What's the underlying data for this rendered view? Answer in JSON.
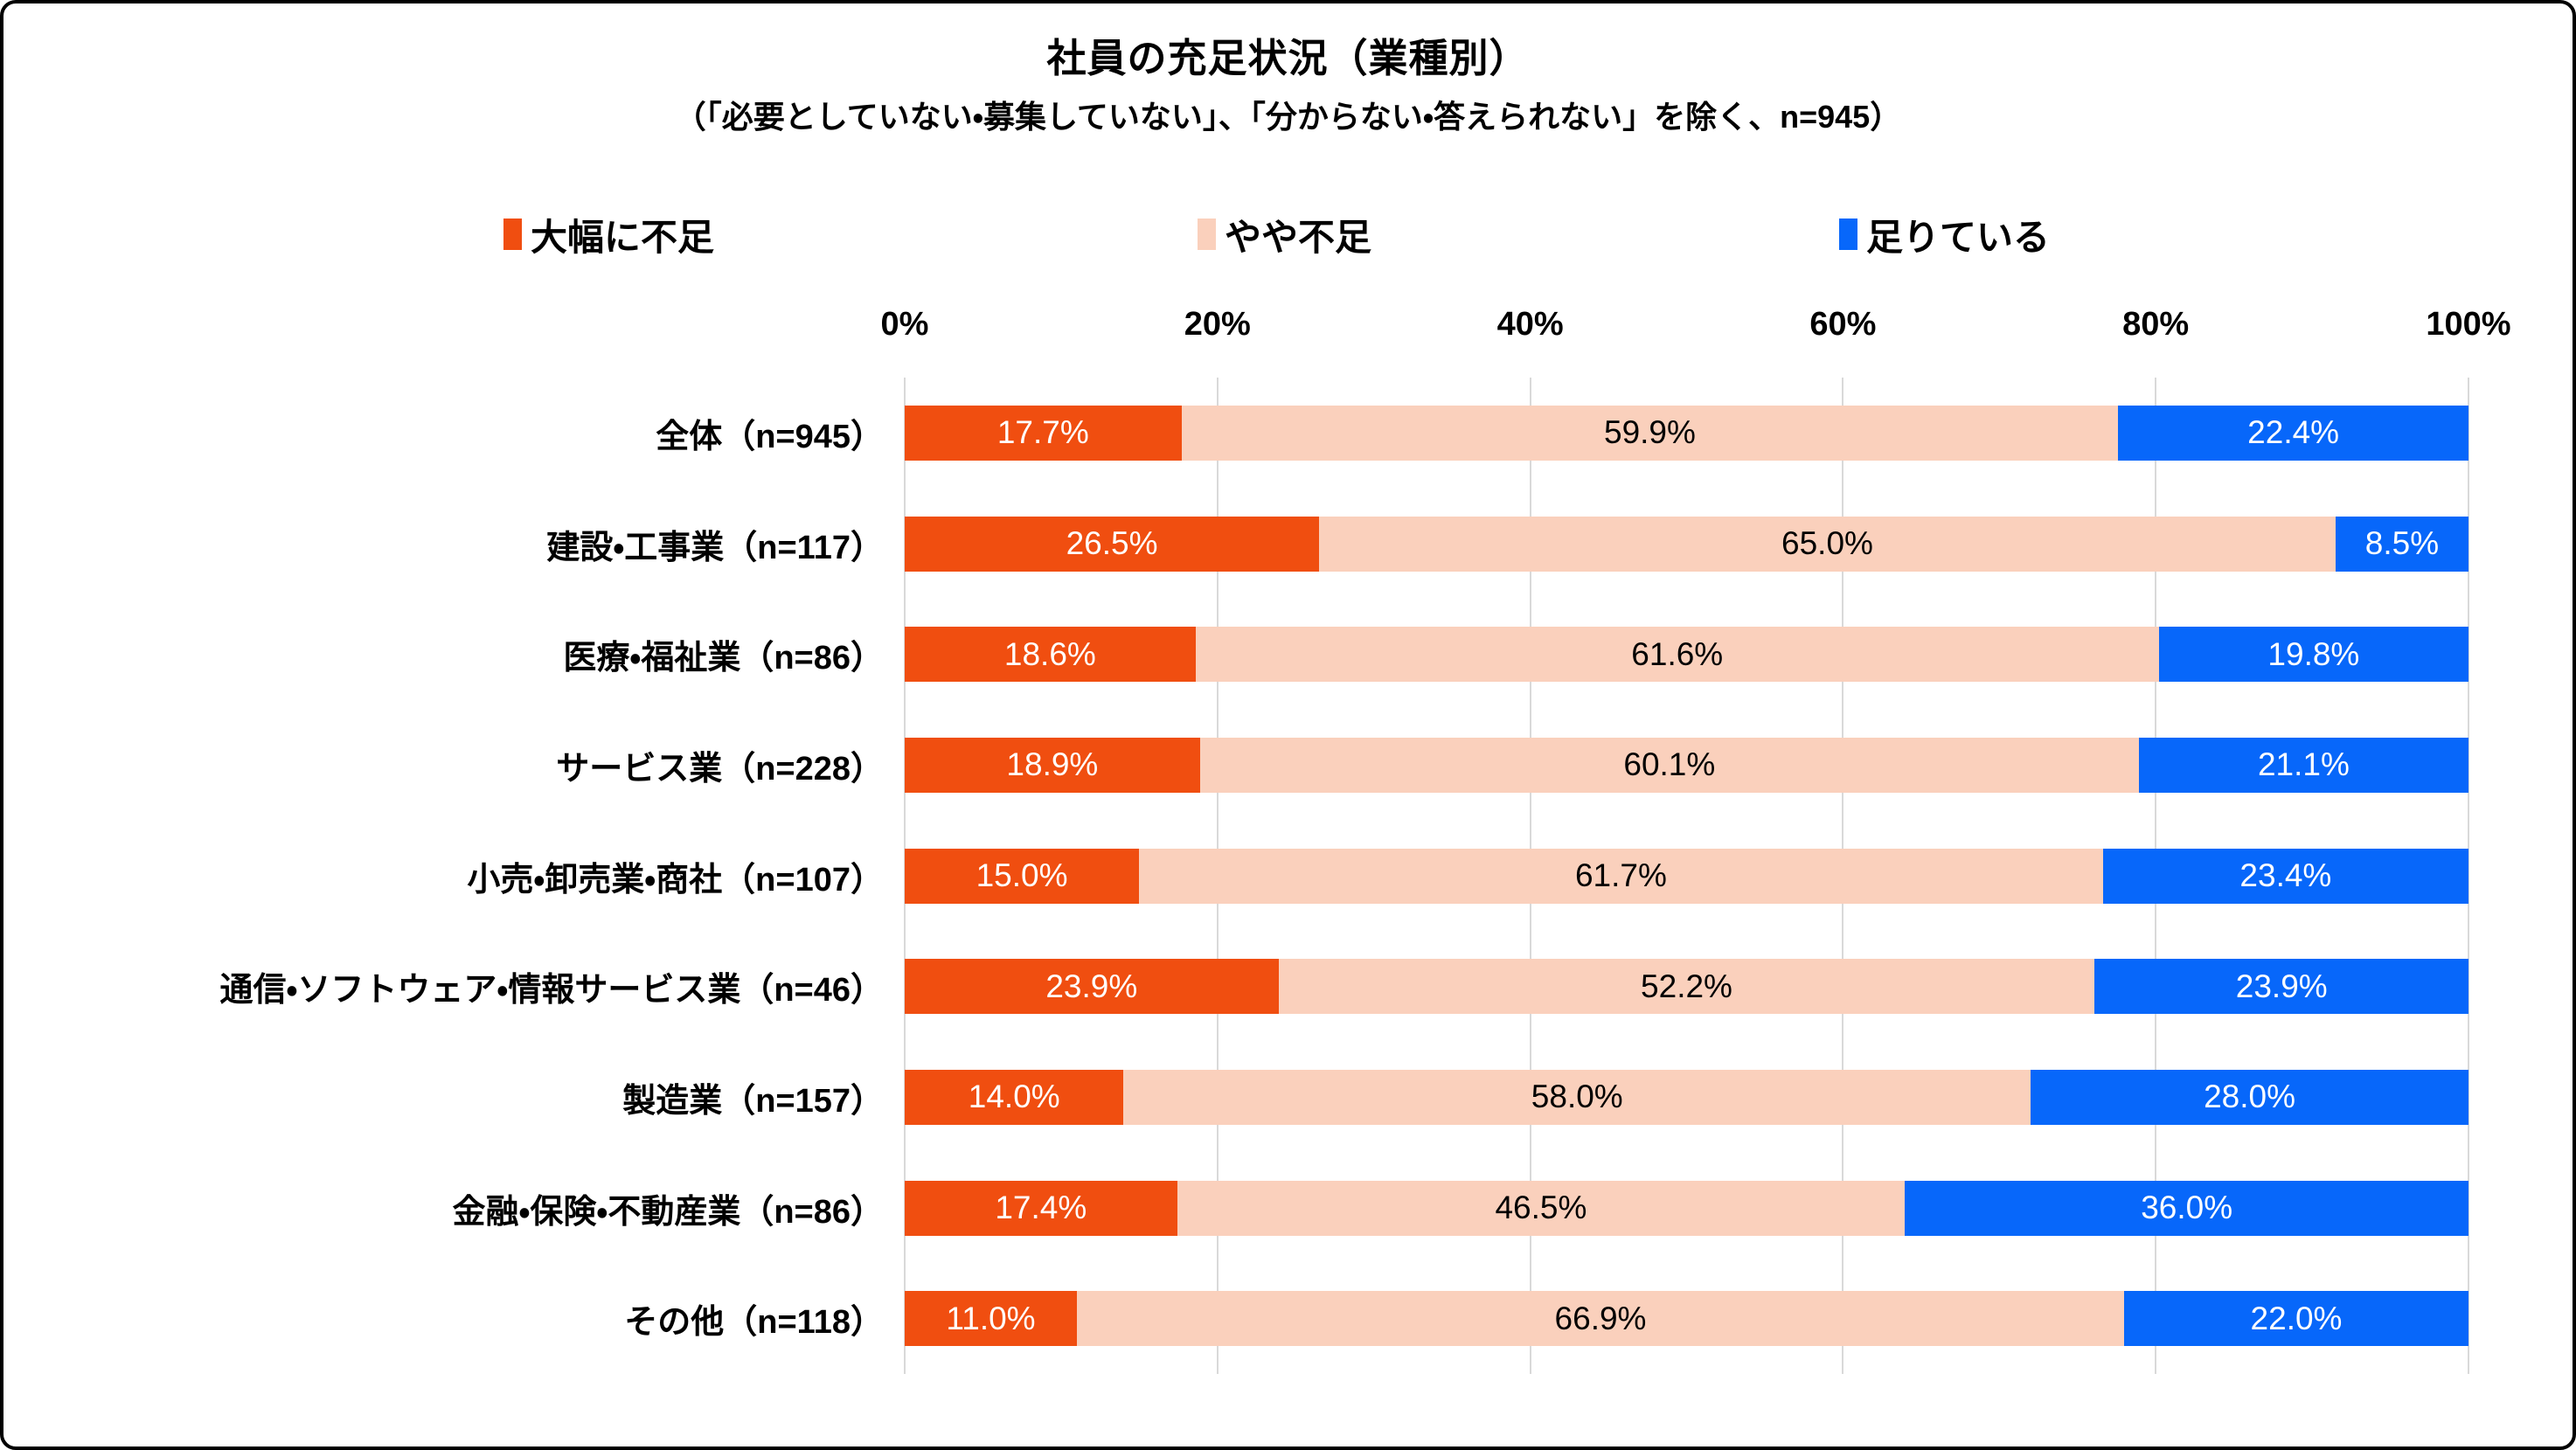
{
  "title": "社員の充足状況（業種別）",
  "subtitle": "（「必要としていない・募集していない」、「分からない・答えられない」を除く、n=945）",
  "colors": {
    "gridline": "#D9D9D9",
    "background": "#FFFFFF",
    "border": "#000000"
  },
  "chart_data": {
    "type": "bar",
    "orientation": "horizontal",
    "stacked": true,
    "grid": true,
    "legend_position": "top",
    "xlim": [
      0,
      100
    ],
    "x_ticks": [
      "0%",
      "20%",
      "40%",
      "60%",
      "80%",
      "100%"
    ],
    "categories": [
      "全体（n=945）",
      "建設・工事業（n=117）",
      "医療・福祉業（n=86）",
      "サービス業（n=228）",
      "小売・卸売業・商社（n=107）",
      "通信・ソフトウェア・情報サービス業（n=46）",
      "製造業（n=157）",
      "金融・保険・不動産業（n=86）",
      "その他（n=118）"
    ],
    "series": [
      {
        "key": "severe-shortage",
        "name": "大幅に不足",
        "color": "#F04E10",
        "text_color": "#FFFFFF",
        "values": [
          17.7,
          26.5,
          18.6,
          18.9,
          15.0,
          23.9,
          14.0,
          17.4,
          11.0
        ],
        "labels": [
          "17.7%",
          "26.5%",
          "18.6%",
          "18.9%",
          "15.0%",
          "23.9%",
          "14.0%",
          "17.4%",
          "11.0%"
        ]
      },
      {
        "key": "slight-shortage",
        "name": "やや不足",
        "color": "#FAD0BC",
        "text_color": "#000000",
        "values": [
          59.9,
          65.0,
          61.6,
          60.1,
          61.7,
          52.2,
          58.0,
          46.5,
          66.9
        ],
        "labels": [
          "59.9%",
          "65.0%",
          "61.6%",
          "60.1%",
          "61.7%",
          "52.2%",
          "58.0%",
          "46.5%",
          "66.9%"
        ]
      },
      {
        "key": "sufficient",
        "name": "足りている",
        "color": "#0767FA",
        "text_color": "#FFFFFF",
        "values": [
          22.4,
          8.5,
          19.8,
          21.1,
          23.4,
          23.9,
          28.0,
          36.0,
          22.0
        ],
        "labels": [
          "22.4%",
          "8.5%",
          "19.8%",
          "21.1%",
          "23.4%",
          "23.9%",
          "28.0%",
          "36.0%",
          "22.0%"
        ]
      }
    ]
  }
}
